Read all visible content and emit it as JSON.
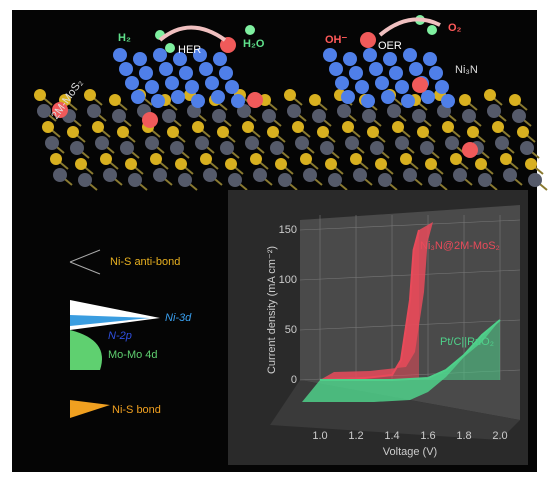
{
  "labels": {
    "h2": "H₂",
    "her": "HER",
    "h2o": "H₂O",
    "oh": "OH⁻",
    "oer": "OER",
    "o2": "O₂",
    "ni3n": "Ni₃N",
    "mos2": "2M-MoS₂",
    "antibond": "Ni-S anti-bond",
    "ni3d": "Ni-3d",
    "n2p": "N-2p",
    "momo": "Mo-Mo 4d",
    "bond": "Ni-S bond"
  },
  "chart_data": {
    "type": "line",
    "xlabel": "Voltage (V)",
    "ylabel": "Current density (mA cm⁻²)",
    "xlim": [
      1.0,
      2.0
    ],
    "ylim": [
      0,
      150
    ],
    "xticks": [
      {
        "value": 1,
        "label": "1.0"
      },
      1.2,
      1.4,
      1.6,
      1.8,
      {
        "value": 2,
        "label": "2.0"
      }
    ],
    "yticks": [
      0,
      50,
      100,
      150
    ],
    "series": [
      {
        "name": "Ni₃N@2M-MoS₂",
        "color": "#e84a5a",
        "x": [
          1.0,
          1.2,
          1.4,
          1.45,
          1.5,
          1.52,
          1.55
        ],
        "values": [
          0,
          1,
          5,
          20,
          80,
          130,
          150
        ]
      },
      {
        "name": "Pt/C||RuO₂",
        "color": "#4fd08a",
        "x": [
          1.0,
          1.4,
          1.6,
          1.7,
          1.8,
          1.9,
          2.0
        ],
        "values": [
          0,
          0,
          2,
          10,
          25,
          45,
          60
        ]
      }
    ]
  }
}
